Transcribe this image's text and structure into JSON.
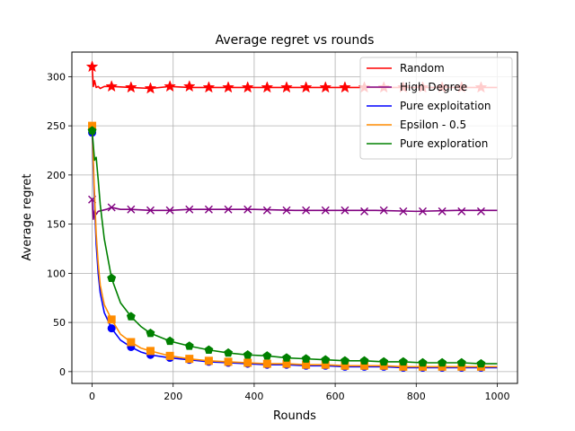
{
  "chart_data": {
    "type": "line",
    "title": "Average regret vs rounds",
    "xlabel": "Rounds",
    "ylabel": "Average regret",
    "xlim": [
      -50,
      1050
    ],
    "ylim": [
      -12,
      325
    ],
    "xticks": [
      0,
      200,
      400,
      600,
      800,
      1000
    ],
    "yticks": [
      0,
      50,
      100,
      150,
      200,
      250,
      300
    ],
    "grid": true,
    "legend_position": "top-right",
    "marker_x": [
      0,
      48,
      96,
      144,
      192,
      240,
      288,
      336,
      384,
      432,
      480,
      528,
      576,
      624,
      672,
      720,
      768,
      816,
      864,
      912,
      960
    ],
    "series": [
      {
        "name": "Random",
        "color": "#ff0000",
        "marker": "star",
        "line": [
          [
            0,
            310
          ],
          [
            3,
            290
          ],
          [
            6,
            296
          ],
          [
            10,
            289
          ],
          [
            15,
            290
          ],
          [
            20,
            288
          ],
          [
            30,
            290
          ],
          [
            48,
            290
          ],
          [
            96,
            289
          ],
          [
            144,
            288
          ],
          [
            192,
            290
          ],
          [
            240,
            289
          ],
          [
            300,
            289
          ],
          [
            400,
            289
          ],
          [
            500,
            289
          ],
          [
            600,
            289
          ],
          [
            700,
            289
          ],
          [
            800,
            289
          ],
          [
            900,
            289
          ],
          [
            1000,
            289
          ]
        ],
        "markers": [
          310,
          290,
          289,
          288,
          290,
          290,
          289,
          289,
          289,
          289,
          289,
          289,
          289,
          289,
          289,
          289,
          289,
          289,
          289,
          289,
          289
        ]
      },
      {
        "name": "High Degree",
        "color": "#800080",
        "marker": "x",
        "line": [
          [
            0,
            175
          ],
          [
            3,
            155
          ],
          [
            6,
            164
          ],
          [
            10,
            160
          ],
          [
            15,
            163
          ],
          [
            25,
            164
          ],
          [
            35,
            165
          ],
          [
            48,
            167
          ],
          [
            70,
            165
          ],
          [
            96,
            165
          ],
          [
            144,
            164
          ],
          [
            192,
            164
          ],
          [
            240,
            165
          ],
          [
            288,
            165
          ],
          [
            336,
            165
          ],
          [
            400,
            165
          ],
          [
            500,
            164
          ],
          [
            600,
            164
          ],
          [
            700,
            164
          ],
          [
            800,
            163
          ],
          [
            900,
            164
          ],
          [
            1000,
            164
          ]
        ],
        "markers": [
          175,
          167,
          165,
          164,
          164,
          165,
          165,
          165,
          165,
          164,
          164,
          164,
          164,
          164,
          163,
          164,
          163,
          163,
          163,
          163,
          163
        ]
      },
      {
        "name": "Pure exploitation",
        "color": "#0000ff",
        "marker": "circle",
        "line": [
          [
            0,
            243
          ],
          [
            5,
            180
          ],
          [
            10,
            130
          ],
          [
            15,
            100
          ],
          [
            20,
            80
          ],
          [
            30,
            60
          ],
          [
            48,
            44
          ],
          [
            70,
            32
          ],
          [
            96,
            25
          ],
          [
            120,
            20
          ],
          [
            144,
            17
          ],
          [
            192,
            14
          ],
          [
            240,
            12
          ],
          [
            288,
            10
          ],
          [
            336,
            9
          ],
          [
            384,
            8
          ],
          [
            432,
            7
          ],
          [
            480,
            7
          ],
          [
            528,
            6
          ],
          [
            576,
            6
          ],
          [
            624,
            5
          ],
          [
            672,
            5
          ],
          [
            720,
            5
          ],
          [
            768,
            4
          ],
          [
            816,
            4
          ],
          [
            864,
            4
          ],
          [
            912,
            4
          ],
          [
            960,
            4
          ],
          [
            1000,
            4
          ]
        ],
        "markers": [
          243,
          44,
          25,
          17,
          14,
          12,
          10,
          9,
          8,
          7,
          7,
          6,
          6,
          5,
          5,
          5,
          4,
          4,
          4,
          4,
          4
        ]
      },
      {
        "name": "Epsilon - 0.5",
        "color": "#ff8c00",
        "marker": "square",
        "line": [
          [
            0,
            250
          ],
          [
            5,
            190
          ],
          [
            10,
            140
          ],
          [
            15,
            110
          ],
          [
            20,
            88
          ],
          [
            30,
            68
          ],
          [
            48,
            53
          ],
          [
            70,
            38
          ],
          [
            96,
            30
          ],
          [
            120,
            24
          ],
          [
            144,
            21
          ],
          [
            192,
            16
          ],
          [
            240,
            13
          ],
          [
            288,
            11
          ],
          [
            336,
            10
          ],
          [
            384,
            9
          ],
          [
            432,
            8
          ],
          [
            480,
            8
          ],
          [
            528,
            7
          ],
          [
            576,
            7
          ],
          [
            624,
            6
          ],
          [
            672,
            6
          ],
          [
            720,
            6
          ],
          [
            768,
            5
          ],
          [
            816,
            5
          ],
          [
            864,
            5
          ],
          [
            912,
            5
          ],
          [
            960,
            5
          ],
          [
            1000,
            5
          ]
        ],
        "markers": [
          250,
          53,
          30,
          21,
          16,
          13,
          11,
          10,
          9,
          8,
          8,
          7,
          7,
          6,
          6,
          6,
          5,
          5,
          5,
          5,
          5
        ]
      },
      {
        "name": "Pure exploration",
        "color": "#008000",
        "marker": "pentagon",
        "line": [
          [
            0,
            245
          ],
          [
            3,
            230
          ],
          [
            6,
            215
          ],
          [
            10,
            218
          ],
          [
            15,
            195
          ],
          [
            20,
            170
          ],
          [
            30,
            135
          ],
          [
            48,
            95
          ],
          [
            70,
            70
          ],
          [
            96,
            56
          ],
          [
            120,
            46
          ],
          [
            144,
            39
          ],
          [
            192,
            31
          ],
          [
            240,
            26
          ],
          [
            288,
            22
          ],
          [
            336,
            19
          ],
          [
            384,
            17
          ],
          [
            432,
            16
          ],
          [
            480,
            14
          ],
          [
            528,
            13
          ],
          [
            576,
            12
          ],
          [
            624,
            11
          ],
          [
            672,
            11
          ],
          [
            720,
            10
          ],
          [
            768,
            10
          ],
          [
            816,
            9
          ],
          [
            864,
            9
          ],
          [
            912,
            9
          ],
          [
            960,
            8
          ],
          [
            1000,
            8
          ]
        ],
        "markers": [
          245,
          95,
          56,
          39,
          31,
          26,
          22,
          19,
          17,
          16,
          14,
          13,
          12,
          11,
          11,
          10,
          10,
          9,
          9,
          9,
          8
        ]
      }
    ]
  }
}
